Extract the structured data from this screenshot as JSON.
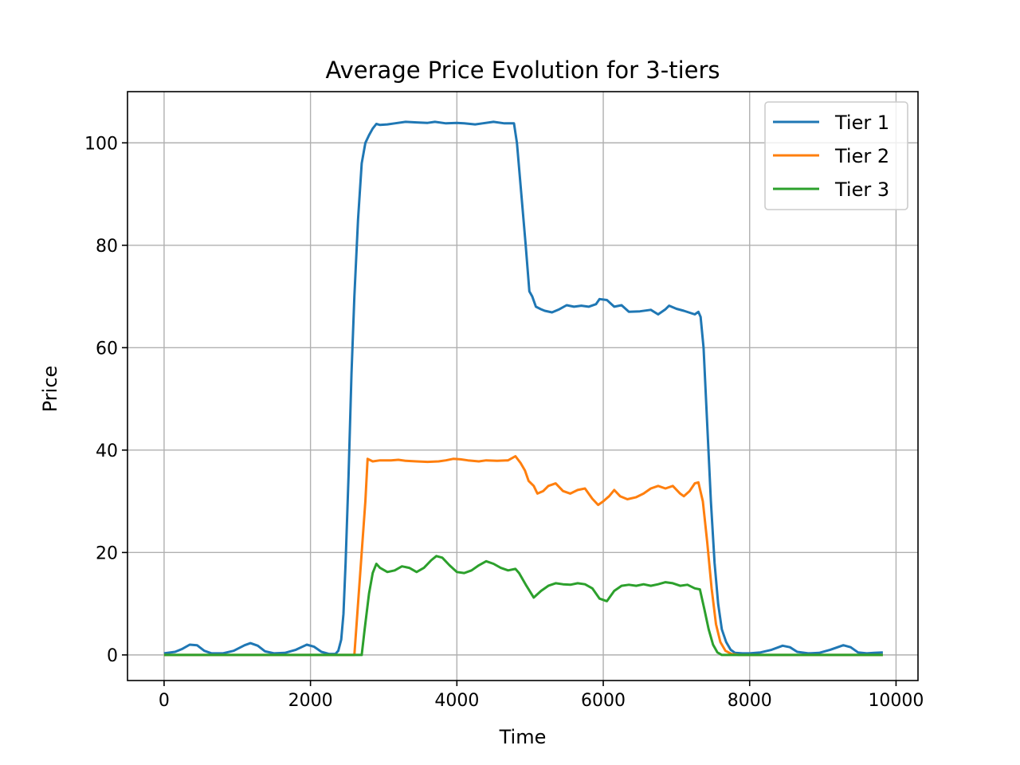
{
  "chart_data": {
    "type": "line",
    "title": "Average Price Evolution for 3-tiers",
    "xlabel": "Time",
    "ylabel": "Price",
    "xlim": [
      -500,
      10300
    ],
    "ylim": [
      -5,
      110
    ],
    "xticks": [
      0,
      2000,
      4000,
      6000,
      8000,
      10000
    ],
    "yticks": [
      0,
      20,
      40,
      60,
      80,
      100
    ],
    "grid": true,
    "legend_position": "top-right",
    "series": [
      {
        "name": "Tier 1",
        "color": "#1f77b4",
        "points": [
          [
            0,
            0.3
          ],
          [
            150,
            0.6
          ],
          [
            250,
            1.2
          ],
          [
            350,
            2.0
          ],
          [
            450,
            1.9
          ],
          [
            550,
            0.8
          ],
          [
            650,
            0.3
          ],
          [
            800,
            0.3
          ],
          [
            950,
            0.8
          ],
          [
            1100,
            1.9
          ],
          [
            1180,
            2.3
          ],
          [
            1280,
            1.8
          ],
          [
            1380,
            0.7
          ],
          [
            1500,
            0.3
          ],
          [
            1650,
            0.4
          ],
          [
            1800,
            1.0
          ],
          [
            1950,
            2.0
          ],
          [
            2050,
            1.6
          ],
          [
            2150,
            0.6
          ],
          [
            2250,
            0.2
          ],
          [
            2340,
            0.2
          ],
          [
            2380,
            0.8
          ],
          [
            2420,
            3
          ],
          [
            2450,
            8
          ],
          [
            2480,
            18
          ],
          [
            2520,
            35
          ],
          [
            2560,
            55
          ],
          [
            2600,
            70
          ],
          [
            2650,
            85
          ],
          [
            2700,
            96
          ],
          [
            2750,
            100
          ],
          [
            2800,
            101.5
          ],
          [
            2850,
            102.8
          ],
          [
            2900,
            103.7
          ],
          [
            2950,
            103.5
          ],
          [
            3050,
            103.6
          ],
          [
            3150,
            103.8
          ],
          [
            3300,
            104.1
          ],
          [
            3450,
            104
          ],
          [
            3600,
            103.9
          ],
          [
            3700,
            104.1
          ],
          [
            3850,
            103.8
          ],
          [
            4000,
            103.9
          ],
          [
            4100,
            103.8
          ],
          [
            4250,
            103.6
          ],
          [
            4350,
            103.8
          ],
          [
            4500,
            104.1
          ],
          [
            4650,
            103.8
          ],
          [
            4780,
            103.8
          ],
          [
            4820,
            100
          ],
          [
            4880,
            90
          ],
          [
            4940,
            80
          ],
          [
            4990,
            71
          ],
          [
            5030,
            70
          ],
          [
            5080,
            68
          ],
          [
            5150,
            67.5
          ],
          [
            5200,
            67.2
          ],
          [
            5300,
            66.9
          ],
          [
            5400,
            67.5
          ],
          [
            5500,
            68.3
          ],
          [
            5600,
            68
          ],
          [
            5700,
            68.2
          ],
          [
            5800,
            68
          ],
          [
            5900,
            68.5
          ],
          [
            5950,
            69.5
          ],
          [
            6050,
            69.3
          ],
          [
            6150,
            68
          ],
          [
            6250,
            68.3
          ],
          [
            6350,
            67
          ],
          [
            6500,
            67.1
          ],
          [
            6650,
            67.4
          ],
          [
            6750,
            66.5
          ],
          [
            6850,
            67.5
          ],
          [
            6900,
            68.2
          ],
          [
            7000,
            67.6
          ],
          [
            7100,
            67.2
          ],
          [
            7250,
            66.5
          ],
          [
            7300,
            67
          ],
          [
            7330,
            66
          ],
          [
            7370,
            60
          ],
          [
            7420,
            45
          ],
          [
            7470,
            30
          ],
          [
            7520,
            18
          ],
          [
            7570,
            10
          ],
          [
            7620,
            5
          ],
          [
            7680,
            2.5
          ],
          [
            7740,
            1
          ],
          [
            7800,
            0.4
          ],
          [
            7900,
            0.3
          ],
          [
            8000,
            0.3
          ],
          [
            8150,
            0.5
          ],
          [
            8300,
            1.0
          ],
          [
            8450,
            1.8
          ],
          [
            8550,
            1.5
          ],
          [
            8650,
            0.6
          ],
          [
            8800,
            0.3
          ],
          [
            8950,
            0.4
          ],
          [
            9100,
            1.0
          ],
          [
            9280,
            1.9
          ],
          [
            9380,
            1.5
          ],
          [
            9480,
            0.5
          ],
          [
            9600,
            0.3
          ],
          [
            9700,
            0.4
          ],
          [
            9820,
            0.5
          ]
        ]
      },
      {
        "name": "Tier 2",
        "color": "#ff7f0e",
        "points": [
          [
            0,
            0
          ],
          [
            2600,
            0
          ],
          [
            2650,
            10
          ],
          [
            2700,
            20
          ],
          [
            2750,
            30
          ],
          [
            2780,
            38.3
          ],
          [
            2850,
            37.8
          ],
          [
            2950,
            38
          ],
          [
            3100,
            38
          ],
          [
            3200,
            38.1
          ],
          [
            3300,
            37.9
          ],
          [
            3450,
            37.8
          ],
          [
            3600,
            37.7
          ],
          [
            3750,
            37.8
          ],
          [
            3850,
            38
          ],
          [
            3950,
            38.3
          ],
          [
            4050,
            38.2
          ],
          [
            4150,
            38
          ],
          [
            4300,
            37.8
          ],
          [
            4400,
            38
          ],
          [
            4550,
            37.9
          ],
          [
            4700,
            38
          ],
          [
            4800,
            38.8
          ],
          [
            4870,
            37.5
          ],
          [
            4930,
            36
          ],
          [
            4980,
            34
          ],
          [
            5050,
            33
          ],
          [
            5100,
            31.5
          ],
          [
            5180,
            32
          ],
          [
            5250,
            33
          ],
          [
            5350,
            33.5
          ],
          [
            5450,
            32
          ],
          [
            5550,
            31.5
          ],
          [
            5650,
            32.2
          ],
          [
            5750,
            32.5
          ],
          [
            5850,
            30.5
          ],
          [
            5930,
            29.3
          ],
          [
            6000,
            30
          ],
          [
            6080,
            31
          ],
          [
            6150,
            32.2
          ],
          [
            6230,
            31
          ],
          [
            6330,
            30.4
          ],
          [
            6450,
            30.8
          ],
          [
            6550,
            31.5
          ],
          [
            6650,
            32.5
          ],
          [
            6750,
            33
          ],
          [
            6850,
            32.5
          ],
          [
            6950,
            33
          ],
          [
            7050,
            31.5
          ],
          [
            7100,
            31
          ],
          [
            7180,
            32
          ],
          [
            7250,
            33.5
          ],
          [
            7300,
            33.7
          ],
          [
            7360,
            30
          ],
          [
            7420,
            22
          ],
          [
            7480,
            13
          ],
          [
            7540,
            6
          ],
          [
            7600,
            2.5
          ],
          [
            7670,
            0.8
          ],
          [
            7750,
            0.2
          ],
          [
            7850,
            0
          ],
          [
            9820,
            0
          ]
        ]
      },
      {
        "name": "Tier 3",
        "color": "#2ca02c",
        "points": [
          [
            0,
            0
          ],
          [
            2700,
            0
          ],
          [
            2740,
            5
          ],
          [
            2800,
            12
          ],
          [
            2850,
            16
          ],
          [
            2900,
            17.8
          ],
          [
            2950,
            17
          ],
          [
            3050,
            16.2
          ],
          [
            3150,
            16.5
          ],
          [
            3250,
            17.3
          ],
          [
            3350,
            17
          ],
          [
            3450,
            16.2
          ],
          [
            3550,
            17
          ],
          [
            3650,
            18.5
          ],
          [
            3720,
            19.3
          ],
          [
            3800,
            19
          ],
          [
            3900,
            17.5
          ],
          [
            4000,
            16.2
          ],
          [
            4100,
            16
          ],
          [
            4200,
            16.5
          ],
          [
            4300,
            17.5
          ],
          [
            4400,
            18.3
          ],
          [
            4500,
            17.8
          ],
          [
            4600,
            17
          ],
          [
            4700,
            16.5
          ],
          [
            4800,
            16.8
          ],
          [
            4850,
            16
          ],
          [
            4950,
            13.5
          ],
          [
            5050,
            11.2
          ],
          [
            5150,
            12.5
          ],
          [
            5250,
            13.5
          ],
          [
            5350,
            14
          ],
          [
            5450,
            13.8
          ],
          [
            5550,
            13.7
          ],
          [
            5650,
            14
          ],
          [
            5750,
            13.8
          ],
          [
            5850,
            13
          ],
          [
            5950,
            11
          ],
          [
            6050,
            10.5
          ],
          [
            6150,
            12.5
          ],
          [
            6250,
            13.5
          ],
          [
            6350,
            13.7
          ],
          [
            6450,
            13.5
          ],
          [
            6550,
            13.8
          ],
          [
            6650,
            13.5
          ],
          [
            6750,
            13.8
          ],
          [
            6850,
            14.2
          ],
          [
            6950,
            14
          ],
          [
            7050,
            13.5
          ],
          [
            7150,
            13.7
          ],
          [
            7250,
            13
          ],
          [
            7320,
            12.8
          ],
          [
            7380,
            9
          ],
          [
            7440,
            5
          ],
          [
            7500,
            2
          ],
          [
            7560,
            0.5
          ],
          [
            7620,
            0
          ],
          [
            9820,
            0
          ]
        ]
      }
    ]
  }
}
